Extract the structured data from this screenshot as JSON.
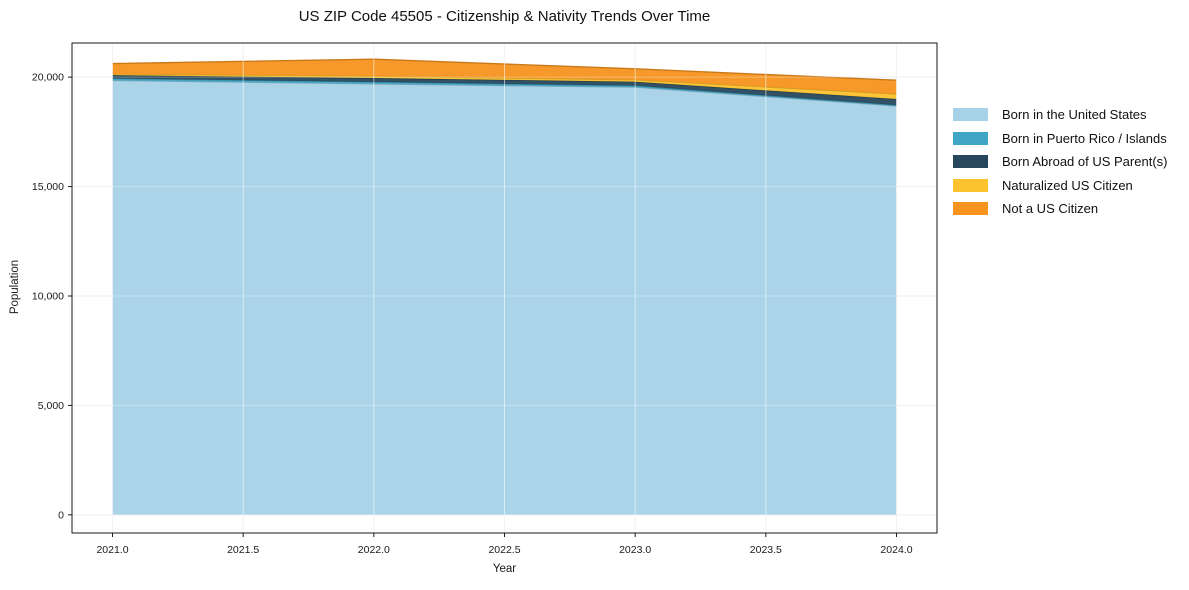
{
  "figure": {
    "title": "US ZIP Code 45505 - Citizenship & Nativity Trends Over Time"
  },
  "chart_data": {
    "type": "area",
    "stacked": true,
    "title": "US ZIP Code 45505 - Citizenship & Nativity Trends Over Time",
    "xlabel": "Year",
    "ylabel": "Population",
    "x": [
      2021,
      2022,
      2023,
      2024
    ],
    "series": [
      {
        "name": "Born in the United States",
        "color": "#a6d2e7",
        "values": [
          19850,
          19690,
          19540,
          18680
        ]
      },
      {
        "name": "Born in Puerto Rico / Islands",
        "color": "#41a6c6",
        "values": [
          90,
          90,
          70,
          40
        ]
      },
      {
        "name": "Born Abroad of US Parent(s)",
        "color": "#27485c",
        "values": [
          150,
          180,
          180,
          280
        ]
      },
      {
        "name": "Naturalized US Citizen",
        "color": "#fdc32f",
        "values": [
          60,
          90,
          90,
          230
        ]
      },
      {
        "name": "Not a US Citizen",
        "color": "#f6941f",
        "values": [
          470,
          770,
          500,
          630
        ]
      }
    ],
    "totals": [
      20620,
      20820,
      20380,
      19860
    ],
    "xlim": [
      2020.845,
      2024.155
    ],
    "ylim": [
      -830,
      21560
    ],
    "xticks": {
      "values": [
        2021.0,
        2021.5,
        2022.0,
        2022.5,
        2023.0,
        2023.5,
        2024.0
      ],
      "labels": [
        "2021.0",
        "2021.5",
        "2022.0",
        "2022.5",
        "2023.0",
        "2023.5",
        "2024.0"
      ]
    },
    "yticks": {
      "values": [
        0,
        5000,
        10000,
        15000,
        20000
      ],
      "labels": [
        "0",
        "5,000",
        "10,000",
        "15,000",
        "20,000"
      ]
    },
    "grid": true,
    "legend_position": "right",
    "axis_color": "#1a1a1a",
    "grid_color": "#e7e7e7"
  }
}
